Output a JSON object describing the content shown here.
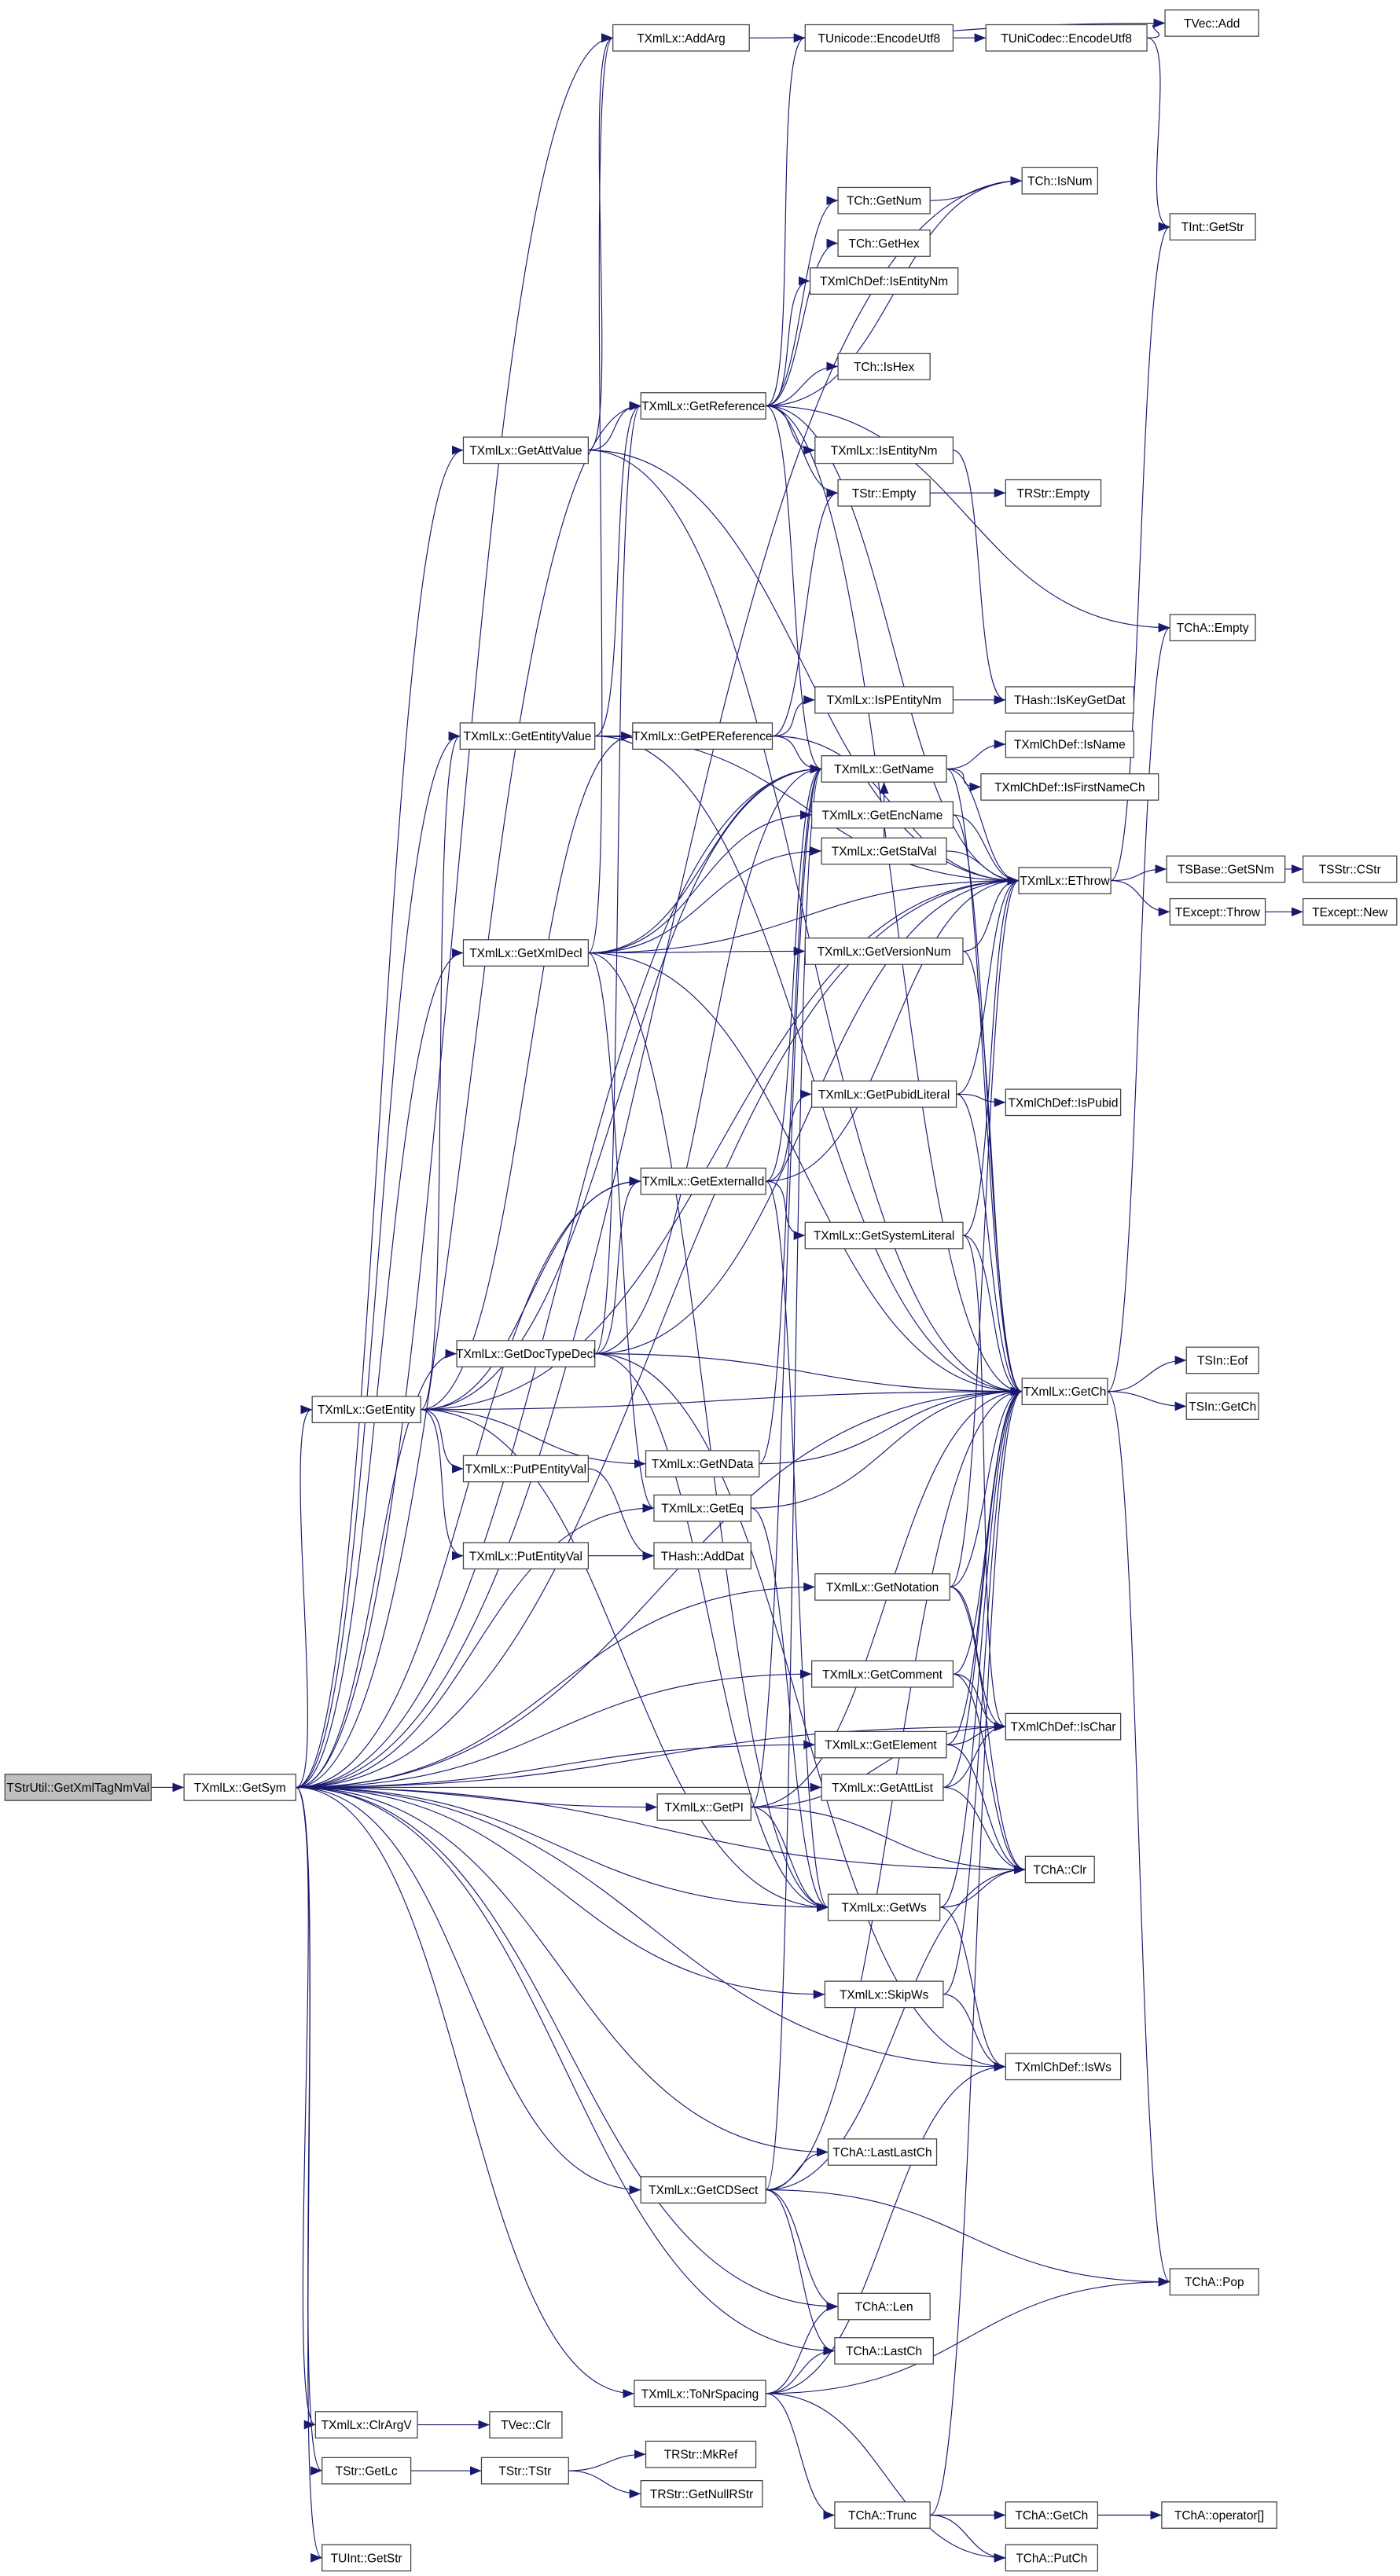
{
  "colors": {
    "edge": "#191970",
    "node_border": "#404040",
    "root_fill": "#bfbfbf",
    "node_fill": "#ffffff"
  },
  "nodes": [
    {
      "id": "root",
      "label": "TStrUtil::GetXmlTagNmVal",
      "root": true
    },
    {
      "id": "GetSym",
      "label": "TXmlLx::GetSym"
    },
    {
      "id": "AddArg",
      "label": "TXmlLx::AddArg"
    },
    {
      "id": "VecAdd",
      "label": "TVec::Add"
    },
    {
      "id": "UniEnc",
      "label": "TUnicode::EncodeUtf8"
    },
    {
      "id": "CodecEnc",
      "label": "TUniCodec::EncodeUtf8"
    },
    {
      "id": "IsNum",
      "label": "TCh::IsNum"
    },
    {
      "id": "GetNum",
      "label": "TCh::GetNum"
    },
    {
      "id": "IntGetStr",
      "label": "TInt::GetStr"
    },
    {
      "id": "GetHex",
      "label": "TCh::GetHex"
    },
    {
      "id": "DefIsEntityNm",
      "label": "TXmlChDef::IsEntityNm"
    },
    {
      "id": "IsHex",
      "label": "TCh::IsHex"
    },
    {
      "id": "GetReference",
      "label": "TXmlLx::GetReference"
    },
    {
      "id": "GetAttValue",
      "label": "TXmlLx::GetAttValue"
    },
    {
      "id": "LxIsEntityNm",
      "label": "TXmlLx::IsEntityNm"
    },
    {
      "id": "StrEmpty",
      "label": "TStr::Empty"
    },
    {
      "id": "RStrEmpty",
      "label": "TRStr::Empty"
    },
    {
      "id": "ChAEmpty",
      "label": "TChA::Empty"
    },
    {
      "id": "IsPEntityNm",
      "label": "TXmlLx::IsPEntityNm"
    },
    {
      "id": "IsKeyGetDat",
      "label": "THash::IsKeyGetDat"
    },
    {
      "id": "GetEntityValue",
      "label": "TXmlLx::GetEntityValue"
    },
    {
      "id": "GetPEReference",
      "label": "TXmlLx::GetPEReference"
    },
    {
      "id": "GetName",
      "label": "TXmlLx::GetName"
    },
    {
      "id": "IsName",
      "label": "TXmlChDef::IsName"
    },
    {
      "id": "IsFirstNameCh",
      "label": "TXmlChDef::IsFirstNameCh"
    },
    {
      "id": "GetEncName",
      "label": "TXmlLx::GetEncName"
    },
    {
      "id": "EThrow",
      "label": "TXmlLx::EThrow"
    },
    {
      "id": "GetSNm",
      "label": "TSBase::GetSNm"
    },
    {
      "id": "CStr",
      "label": "TSStr::CStr"
    },
    {
      "id": "GetStalVal",
      "label": "TXmlLx::GetStalVal"
    },
    {
      "id": "Throw",
      "label": "TExcept::Throw"
    },
    {
      "id": "New",
      "label": "TExcept::New"
    },
    {
      "id": "GetXmlDecl",
      "label": "TXmlLx::GetXmlDecl"
    },
    {
      "id": "GetVersionNum",
      "label": "TXmlLx::GetVersionNum"
    },
    {
      "id": "GetPubidLiteral",
      "label": "TXmlLx::GetPubidLiteral"
    },
    {
      "id": "IsPubid",
      "label": "TXmlChDef::IsPubid"
    },
    {
      "id": "GetExternalId",
      "label": "TXmlLx::GetExternalId"
    },
    {
      "id": "GetSystemLiteral",
      "label": "TXmlLx::GetSystemLiteral"
    },
    {
      "id": "GetDocTypeDecl",
      "label": "TXmlLx::GetDocTypeDecl"
    },
    {
      "id": "LxGetCh",
      "label": "TXmlLx::GetCh"
    },
    {
      "id": "Eof",
      "label": "TSIn::Eof"
    },
    {
      "id": "SInGetCh",
      "label": "TSIn::GetCh"
    },
    {
      "id": "GetEntity",
      "label": "TXmlLx::GetEntity"
    },
    {
      "id": "PutPEntityVal",
      "label": "TXmlLx::PutPEntityVal"
    },
    {
      "id": "GetNData",
      "label": "TXmlLx::GetNData"
    },
    {
      "id": "GetEq",
      "label": "TXmlLx::GetEq"
    },
    {
      "id": "AddDat",
      "label": "THash::AddDat"
    },
    {
      "id": "PutEntityVal",
      "label": "TXmlLx::PutEntityVal"
    },
    {
      "id": "GetNotation",
      "label": "TXmlLx::GetNotation"
    },
    {
      "id": "GetComment",
      "label": "TXmlLx::GetComment"
    },
    {
      "id": "GetElement",
      "label": "TXmlLx::GetElement"
    },
    {
      "id": "IsChar",
      "label": "TXmlChDef::IsChar"
    },
    {
      "id": "GetAttList",
      "label": "TXmlLx::GetAttList"
    },
    {
      "id": "GetPI",
      "label": "TXmlLx::GetPI"
    },
    {
      "id": "ChAClr",
      "label": "TChA::Clr"
    },
    {
      "id": "GetWs",
      "label": "TXmlLx::GetWs"
    },
    {
      "id": "SkipWs",
      "label": "TXmlLx::SkipWs"
    },
    {
      "id": "IsWs",
      "label": "TXmlChDef::IsWs"
    },
    {
      "id": "LastLastCh",
      "label": "TChA::LastLastCh"
    },
    {
      "id": "GetCDSect",
      "label": "TXmlLx::GetCDSect"
    },
    {
      "id": "Pop",
      "label": "TChA::Pop"
    },
    {
      "id": "Len",
      "label": "TChA::Len"
    },
    {
      "id": "LastCh",
      "label": "TChA::LastCh"
    },
    {
      "id": "ToNrSpacing",
      "label": "TXmlLx::ToNrSpacing"
    },
    {
      "id": "ClrArgV",
      "label": "TXmlLx::ClrArgV"
    },
    {
      "id": "VecClr",
      "label": "TVec::Clr"
    },
    {
      "id": "GetLc",
      "label": "TStr::GetLc"
    },
    {
      "id": "TStrCtor",
      "label": "TStr::TStr"
    },
    {
      "id": "MkRef",
      "label": "TRStr::MkRef"
    },
    {
      "id": "GetNullRStr",
      "label": "TRStr::GetNullRStr"
    },
    {
      "id": "Trunc",
      "label": "TChA::Trunc"
    },
    {
      "id": "ChAGetCh",
      "label": "TChA::GetCh"
    },
    {
      "id": "OpIdx",
      "label": "TChA::operator[]"
    },
    {
      "id": "PutCh",
      "label": "TChA::PutCh"
    },
    {
      "id": "UIntGetStr",
      "label": "TUInt::GetStr"
    }
  ],
  "edges": [
    [
      "root",
      "GetSym"
    ],
    [
      "GetSym",
      "AddArg"
    ],
    [
      "GetSym",
      "IsNum"
    ],
    [
      "GetSym",
      "GetReference"
    ],
    [
      "GetSym",
      "GetAttValue"
    ],
    [
      "GetSym",
      "GetEntityValue"
    ],
    [
      "GetSym",
      "GetXmlDecl"
    ],
    [
      "GetSym",
      "GetDocTypeDecl"
    ],
    [
      "GetSym",
      "GetEntity"
    ],
    [
      "GetSym",
      "GetName"
    ],
    [
      "GetSym",
      "EThrow"
    ],
    [
      "GetSym",
      "LxGetCh"
    ],
    [
      "GetSym",
      "GetEq"
    ],
    [
      "GetSym",
      "GetNotation"
    ],
    [
      "GetSym",
      "GetComment"
    ],
    [
      "GetSym",
      "GetElement"
    ],
    [
      "GetSym",
      "GetAttList"
    ],
    [
      "GetSym",
      "GetPI"
    ],
    [
      "GetSym",
      "GetWs"
    ],
    [
      "GetSym",
      "SkipWs"
    ],
    [
      "GetSym",
      "IsWs"
    ],
    [
      "GetSym",
      "GetCDSect"
    ],
    [
      "GetSym",
      "LastLastCh"
    ],
    [
      "GetSym",
      "Len"
    ],
    [
      "GetSym",
      "LastCh"
    ],
    [
      "GetSym",
      "ToNrSpacing"
    ],
    [
      "GetSym",
      "ClrArgV"
    ],
    [
      "GetSym",
      "GetLc"
    ],
    [
      "GetSym",
      "UIntGetStr"
    ],
    [
      "GetSym",
      "ChAClr"
    ],
    [
      "GetSym",
      "IsChar"
    ],
    [
      "GetSym",
      "GetExternalId"
    ],
    [
      "AddArg",
      "VecAdd"
    ],
    [
      "GetReference",
      "UniEnc"
    ],
    [
      "GetReference",
      "IsNum"
    ],
    [
      "GetReference",
      "GetNum"
    ],
    [
      "GetReference",
      "GetHex"
    ],
    [
      "GetReference",
      "DefIsEntityNm"
    ],
    [
      "GetReference",
      "IsHex"
    ],
    [
      "GetReference",
      "LxIsEntityNm"
    ],
    [
      "GetReference",
      "StrEmpty"
    ],
    [
      "GetReference",
      "ChAEmpty"
    ],
    [
      "GetReference",
      "GetName"
    ],
    [
      "GetReference",
      "EThrow"
    ],
    [
      "GetReference",
      "LxGetCh"
    ],
    [
      "UniEnc",
      "CodecEnc"
    ],
    [
      "CodecEnc",
      "VecAdd"
    ],
    [
      "CodecEnc",
      "IntGetStr"
    ],
    [
      "GetNum",
      "IsNum"
    ],
    [
      "LxIsEntityNm",
      "IsKeyGetDat"
    ],
    [
      "StrEmpty",
      "RStrEmpty"
    ],
    [
      "GetAttValue",
      "GetReference"
    ],
    [
      "GetAttValue",
      "AddArg"
    ],
    [
      "GetAttValue",
      "EThrow"
    ],
    [
      "GetAttValue",
      "LxGetCh"
    ],
    [
      "GetEntityValue",
      "GetPEReference"
    ],
    [
      "GetEntityValue",
      "GetReference"
    ],
    [
      "GetEntityValue",
      "EThrow"
    ],
    [
      "GetEntityValue",
      "LxGetCh"
    ],
    [
      "GetPEReference",
      "IsPEntityNm"
    ],
    [
      "GetPEReference",
      "GetName"
    ],
    [
      "GetPEReference",
      "StrEmpty"
    ],
    [
      "GetPEReference",
      "EThrow"
    ],
    [
      "IsPEntityNm",
      "IsKeyGetDat"
    ],
    [
      "GetName",
      "IsName"
    ],
    [
      "GetName",
      "IsFirstNameCh"
    ],
    [
      "GetName",
      "EThrow"
    ],
    [
      "GetName",
      "LxGetCh"
    ],
    [
      "GetEncName",
      "EThrow"
    ],
    [
      "GetEncName",
      "LxGetCh"
    ],
    [
      "EThrow",
      "GetSNm"
    ],
    [
      "EThrow",
      "Throw"
    ],
    [
      "EThrow",
      "IntGetStr"
    ],
    [
      "GetSNm",
      "CStr"
    ],
    [
      "Throw",
      "New"
    ],
    [
      "GetStalVal",
      "GetName"
    ],
    [
      "GetStalVal",
      "EThrow"
    ],
    [
      "GetXmlDecl",
      "GetName"
    ],
    [
      "GetXmlDecl",
      "GetEncName"
    ],
    [
      "GetXmlDecl",
      "GetStalVal"
    ],
    [
      "GetXmlDecl",
      "GetVersionNum"
    ],
    [
      "GetXmlDecl",
      "GetEq"
    ],
    [
      "GetXmlDecl",
      "GetWs"
    ],
    [
      "GetXmlDecl",
      "EThrow"
    ],
    [
      "GetXmlDecl",
      "LxGetCh"
    ],
    [
      "GetXmlDecl",
      "AddArg"
    ],
    [
      "GetVersionNum",
      "EThrow"
    ],
    [
      "GetVersionNum",
      "LxGetCh"
    ],
    [
      "GetPubidLiteral",
      "IsPubid"
    ],
    [
      "GetPubidLiteral",
      "EThrow"
    ],
    [
      "GetPubidLiteral",
      "LxGetCh"
    ],
    [
      "GetExternalId",
      "GetPubidLiteral"
    ],
    [
      "GetExternalId",
      "GetSystemLiteral"
    ],
    [
      "GetExternalId",
      "GetName"
    ],
    [
      "GetExternalId",
      "GetWs"
    ],
    [
      "GetExternalId",
      "EThrow"
    ],
    [
      "GetSystemLiteral",
      "EThrow"
    ],
    [
      "GetSystemLiteral",
      "LxGetCh"
    ],
    [
      "GetSystemLiteral",
      "IsChar"
    ],
    [
      "GetDocTypeDecl",
      "GetExternalId"
    ],
    [
      "GetDocTypeDecl",
      "GetName"
    ],
    [
      "GetDocTypeDecl",
      "GetWs"
    ],
    [
      "GetDocTypeDecl",
      "LxGetCh"
    ],
    [
      "GetDocTypeDecl",
      "EThrow"
    ],
    [
      "GetDocTypeDecl",
      "GetReference"
    ],
    [
      "GetDocTypeDecl",
      "IsWs"
    ],
    [
      "LxGetCh",
      "Eof"
    ],
    [
      "LxGetCh",
      "SInGetCh"
    ],
    [
      "LxGetCh",
      "ChAEmpty"
    ],
    [
      "LxGetCh",
      "Pop"
    ],
    [
      "GetEntity",
      "GetEntityValue"
    ],
    [
      "GetEntity",
      "GetExternalId"
    ],
    [
      "GetEntity",
      "GetNData"
    ],
    [
      "GetEntity",
      "PutPEntityVal"
    ],
    [
      "GetEntity",
      "PutEntityVal"
    ],
    [
      "GetEntity",
      "GetName"
    ],
    [
      "GetEntity",
      "GetWs"
    ],
    [
      "GetEntity",
      "LxGetCh"
    ],
    [
      "GetEntity",
      "EThrow"
    ],
    [
      "GetEntity",
      "GetPEReference"
    ],
    [
      "PutPEntityVal",
      "AddDat"
    ],
    [
      "PutEntityVal",
      "AddDat"
    ],
    [
      "GetNData",
      "GetName"
    ],
    [
      "GetNData",
      "LxGetCh"
    ],
    [
      "GetEq",
      "LxGetCh"
    ],
    [
      "GetEq",
      "GetWs"
    ],
    [
      "GetNotation",
      "EThrow"
    ],
    [
      "GetNotation",
      "LxGetCh"
    ],
    [
      "GetNotation",
      "IsChar"
    ],
    [
      "GetNotation",
      "ChAClr"
    ],
    [
      "GetComment",
      "LxGetCh"
    ],
    [
      "GetComment",
      "IsChar"
    ],
    [
      "GetComment",
      "ChAClr"
    ],
    [
      "GetElement",
      "LxGetCh"
    ],
    [
      "GetElement",
      "IsChar"
    ],
    [
      "GetElement",
      "ChAClr"
    ],
    [
      "GetAttList",
      "LxGetCh"
    ],
    [
      "GetAttList",
      "IsChar"
    ],
    [
      "GetAttList",
      "ChAClr"
    ],
    [
      "GetPI",
      "GetName"
    ],
    [
      "GetPI",
      "GetWs"
    ],
    [
      "GetPI",
      "LxGetCh"
    ],
    [
      "GetPI",
      "IsChar"
    ],
    [
      "GetPI",
      "ChAClr"
    ],
    [
      "GetWs",
      "IsWs"
    ],
    [
      "GetWs",
      "LxGetCh"
    ],
    [
      "GetWs",
      "ChAClr"
    ],
    [
      "SkipWs",
      "IsWs"
    ],
    [
      "SkipWs",
      "LxGetCh"
    ],
    [
      "GetCDSect",
      "LastLastCh"
    ],
    [
      "GetCDSect",
      "Pop"
    ],
    [
      "GetCDSect",
      "Len"
    ],
    [
      "GetCDSect",
      "LastCh"
    ],
    [
      "GetCDSect",
      "LxGetCh"
    ],
    [
      "GetCDSect",
      "ChAClr"
    ],
    [
      "GetCDSect",
      "GetName"
    ],
    [
      "ToNrSpacing",
      "Len"
    ],
    [
      "ToNrSpacing",
      "LastCh"
    ],
    [
      "ToNrSpacing",
      "Trunc"
    ],
    [
      "ToNrSpacing",
      "PutCh"
    ],
    [
      "ToNrSpacing",
      "Pop"
    ],
    [
      "ToNrSpacing",
      "IsWs"
    ],
    [
      "ClrArgV",
      "VecClr"
    ],
    [
      "GetLc",
      "TStrCtor"
    ],
    [
      "TStrCtor",
      "MkRef"
    ],
    [
      "TStrCtor",
      "GetNullRStr"
    ],
    [
      "Trunc",
      "ChAGetCh"
    ],
    [
      "Trunc",
      "PutCh"
    ],
    [
      "Trunc",
      "LxGetCh"
    ],
    [
      "ChAGetCh",
      "OpIdx"
    ]
  ]
}
